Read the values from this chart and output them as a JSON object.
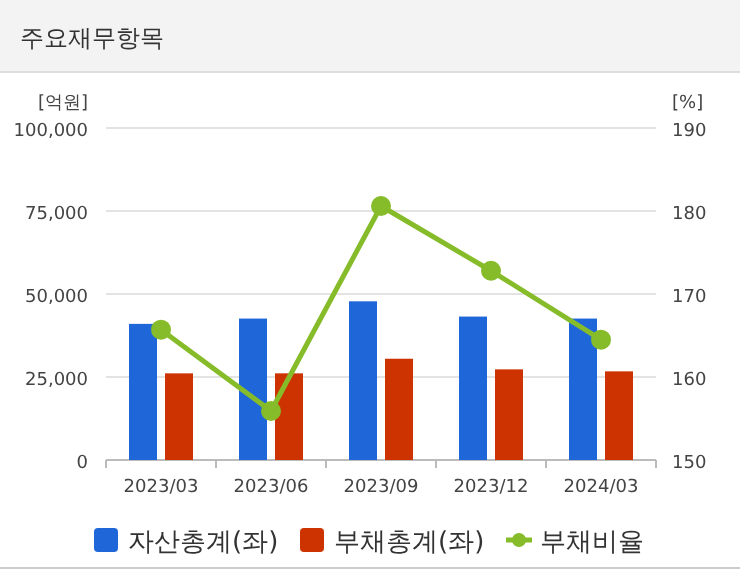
{
  "chart_data": {
    "type": "bar",
    "title": "주요재무항목",
    "ylabel": "[억원]",
    "y2label": "[%]",
    "categories": [
      "2023/03",
      "2023/06",
      "2023/09",
      "2023/12",
      "2024/03"
    ],
    "series": [
      {
        "name": "자산총계(좌)",
        "color": "#1f66d9",
        "values": [
          41000,
          42600,
          47800,
          43200,
          42600
        ]
      },
      {
        "name": "부채총계(좌)",
        "color": "#cc3300",
        "values": [
          26100,
          26100,
          30500,
          27300,
          26700
        ]
      },
      {
        "name": "부채비율",
        "type": "line",
        "axis": "y2",
        "color": "#86bc2a",
        "marker": "circle",
        "values": [
          165.7,
          155.9,
          180.6,
          172.8,
          164.5
        ]
      }
    ],
    "ylim": [
      0,
      100000
    ],
    "yticks": [
      {
        "value": 0,
        "label": "0"
      },
      {
        "value": 25000,
        "label": "25,000"
      },
      {
        "value": 50000,
        "label": "50,000"
      },
      {
        "value": 75000,
        "label": "75,000"
      },
      {
        "value": 100000,
        "label": "100,000"
      }
    ],
    "y2lim": [
      150,
      190
    ],
    "y2ticks": [
      150,
      160,
      170,
      180,
      190
    ],
    "grid": "y",
    "legend": "bottom"
  }
}
